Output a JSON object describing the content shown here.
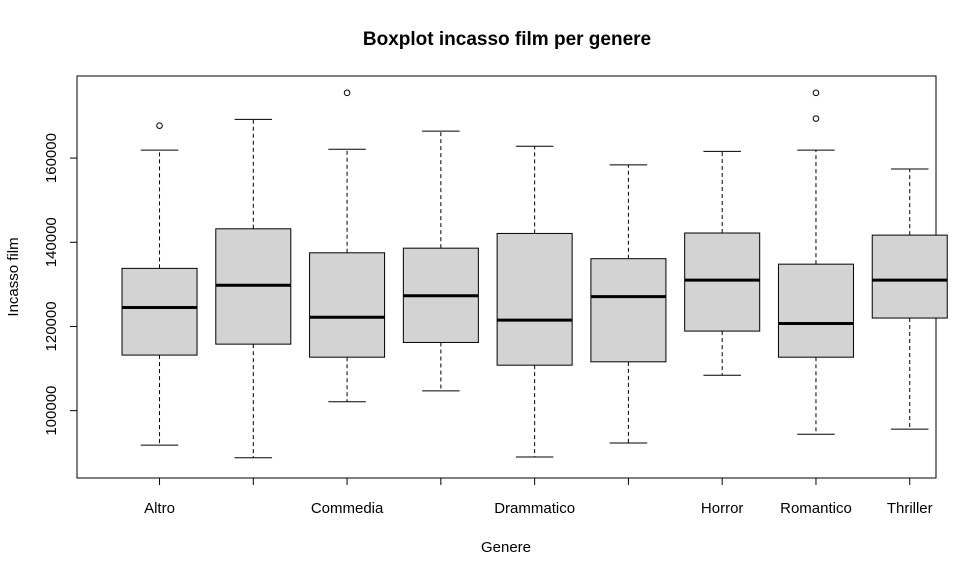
{
  "chart_data": {
    "type": "boxplot",
    "title": "Boxplot incasso film per genere",
    "xlabel": "Genere",
    "ylabel": "Incasso film",
    "ylim": [
      84000,
      179500
    ],
    "yticks": [
      100000,
      120000,
      140000,
      160000
    ],
    "ytick_labels": [
      "100000",
      "120000",
      "140000",
      "160000"
    ],
    "categories": [
      "Altro",
      "",
      "Commedia",
      "",
      "Drammatico",
      "",
      "Horror",
      "Romantico",
      "Thriller"
    ],
    "box_fill": "#d3d3d3",
    "stroke": "#000000",
    "grid": false,
    "boxes": [
      {
        "low": 91800,
        "q1": 113200,
        "median": 124500,
        "q3": 133800,
        "high": 161900,
        "outliers": [
          167700
        ]
      },
      {
        "low": 88800,
        "q1": 115800,
        "median": 129800,
        "q3": 143200,
        "high": 169200,
        "outliers": []
      },
      {
        "low": 102100,
        "q1": 112700,
        "median": 122200,
        "q3": 137500,
        "high": 162100,
        "outliers": [
          175500
        ]
      },
      {
        "low": 104700,
        "q1": 116200,
        "median": 127300,
        "q3": 138600,
        "high": 166400,
        "outliers": []
      },
      {
        "low": 89000,
        "q1": 110800,
        "median": 121500,
        "q3": 142100,
        "high": 162800,
        "outliers": []
      },
      {
        "low": 92300,
        "q1": 111600,
        "median": 127100,
        "q3": 136100,
        "high": 158400,
        "outliers": []
      },
      {
        "low": 108400,
        "q1": 118900,
        "median": 131000,
        "q3": 142200,
        "high": 161600,
        "outliers": []
      },
      {
        "low": 94400,
        "q1": 112700,
        "median": 120700,
        "q3": 134800,
        "high": 161900,
        "outliers": [
          169400,
          175500
        ]
      },
      {
        "low": 95600,
        "q1": 122000,
        "median": 131000,
        "q3": 141700,
        "high": 157400,
        "outliers": []
      }
    ]
  }
}
